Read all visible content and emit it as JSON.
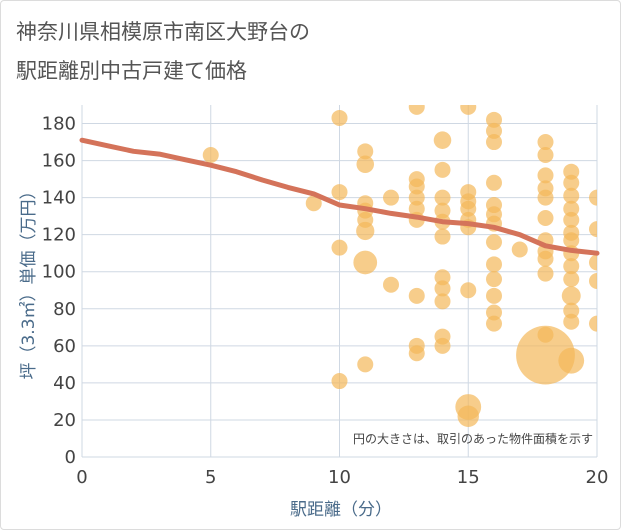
{
  "chart_data": {
    "type": "scatter",
    "title_lines": [
      "神奈川県相模原市南区大野台の",
      "駅距離別中古戸建て価格"
    ],
    "xlabel": "駅距離（分）",
    "ylabel": "坪（3.3㎡）単価（万円）",
    "note": "円の大きさは、取引のあった物件面積を示す",
    "xlim": [
      0,
      20
    ],
    "ylim": [
      0,
      190
    ],
    "xticks": [
      0,
      5,
      10,
      15,
      20
    ],
    "yticks": [
      0,
      20,
      40,
      60,
      80,
      100,
      120,
      140,
      160,
      180
    ],
    "grid": true,
    "colors": {
      "bubble": "#f3b85a",
      "trend": "#d4735a",
      "grid": "#cfd8e3"
    },
    "trend": {
      "x": [
        0,
        1,
        2,
        3,
        4,
        5,
        6,
        7,
        8,
        9,
        10,
        11,
        12,
        13,
        14,
        15,
        16,
        17,
        18,
        19,
        20
      ],
      "y": [
        171,
        168,
        165,
        163.5,
        160.5,
        157.5,
        154,
        149.5,
        145.5,
        142,
        136,
        134,
        131.5,
        129.5,
        127,
        126,
        124,
        120,
        114,
        111.5,
        110
      ]
    },
    "points": [
      {
        "x": 5,
        "y": 163,
        "s": 1
      },
      {
        "x": 9,
        "y": 137,
        "s": 1
      },
      {
        "x": 10,
        "y": 183,
        "s": 1
      },
      {
        "x": 10,
        "y": 143,
        "s": 1
      },
      {
        "x": 10,
        "y": 113,
        "s": 1
      },
      {
        "x": 10,
        "y": 41,
        "s": 1
      },
      {
        "x": 11,
        "y": 165,
        "s": 1
      },
      {
        "x": 11,
        "y": 158,
        "s": 1.2
      },
      {
        "x": 11,
        "y": 137,
        "s": 1
      },
      {
        "x": 11,
        "y": 133,
        "s": 1
      },
      {
        "x": 11,
        "y": 128,
        "s": 1
      },
      {
        "x": 11,
        "y": 122,
        "s": 1.3
      },
      {
        "x": 11,
        "y": 105,
        "s": 2.2
      },
      {
        "x": 11,
        "y": 50,
        "s": 1
      },
      {
        "x": 12,
        "y": 140,
        "s": 1
      },
      {
        "x": 12,
        "y": 93,
        "s": 1
      },
      {
        "x": 13,
        "y": 189,
        "s": 1
      },
      {
        "x": 13,
        "y": 150,
        "s": 1
      },
      {
        "x": 13,
        "y": 146,
        "s": 1
      },
      {
        "x": 13,
        "y": 140,
        "s": 1
      },
      {
        "x": 13,
        "y": 134,
        "s": 1
      },
      {
        "x": 13,
        "y": 128,
        "s": 1
      },
      {
        "x": 13,
        "y": 87,
        "s": 1
      },
      {
        "x": 13,
        "y": 60,
        "s": 1
      },
      {
        "x": 13,
        "y": 56,
        "s": 1
      },
      {
        "x": 14,
        "y": 171,
        "s": 1.2
      },
      {
        "x": 14,
        "y": 155,
        "s": 1
      },
      {
        "x": 14,
        "y": 140,
        "s": 1
      },
      {
        "x": 14,
        "y": 133,
        "s": 1
      },
      {
        "x": 14,
        "y": 127,
        "s": 1
      },
      {
        "x": 14,
        "y": 119,
        "s": 1
      },
      {
        "x": 14,
        "y": 97,
        "s": 1
      },
      {
        "x": 14,
        "y": 91,
        "s": 1
      },
      {
        "x": 14,
        "y": 84,
        "s": 1
      },
      {
        "x": 14,
        "y": 65,
        "s": 1
      },
      {
        "x": 14,
        "y": 60,
        "s": 1
      },
      {
        "x": 15,
        "y": 189,
        "s": 1
      },
      {
        "x": 15,
        "y": 143,
        "s": 1
      },
      {
        "x": 15,
        "y": 138,
        "s": 1
      },
      {
        "x": 15,
        "y": 134,
        "s": 1
      },
      {
        "x": 15,
        "y": 128,
        "s": 1
      },
      {
        "x": 15,
        "y": 124,
        "s": 1
      },
      {
        "x": 15,
        "y": 90,
        "s": 1
      },
      {
        "x": 15,
        "y": 27,
        "s": 2.6
      },
      {
        "x": 15,
        "y": 22,
        "s": 1.8
      },
      {
        "x": 16,
        "y": 182,
        "s": 1
      },
      {
        "x": 16,
        "y": 176,
        "s": 1
      },
      {
        "x": 16,
        "y": 170,
        "s": 1
      },
      {
        "x": 16,
        "y": 148,
        "s": 1
      },
      {
        "x": 16,
        "y": 136,
        "s": 1
      },
      {
        "x": 16,
        "y": 131,
        "s": 1
      },
      {
        "x": 16,
        "y": 126,
        "s": 1
      },
      {
        "x": 16,
        "y": 116,
        "s": 1
      },
      {
        "x": 16,
        "y": 104,
        "s": 1
      },
      {
        "x": 16,
        "y": 96,
        "s": 1
      },
      {
        "x": 16,
        "y": 87,
        "s": 1
      },
      {
        "x": 16,
        "y": 78,
        "s": 1
      },
      {
        "x": 16,
        "y": 72,
        "s": 1
      },
      {
        "x": 17,
        "y": 112,
        "s": 1
      },
      {
        "x": 18,
        "y": 170,
        "s": 1
      },
      {
        "x": 18,
        "y": 163,
        "s": 1
      },
      {
        "x": 18,
        "y": 152,
        "s": 1
      },
      {
        "x": 18,
        "y": 145,
        "s": 1
      },
      {
        "x": 18,
        "y": 140,
        "s": 1
      },
      {
        "x": 18,
        "y": 129,
        "s": 1
      },
      {
        "x": 18,
        "y": 117,
        "s": 1
      },
      {
        "x": 18,
        "y": 111,
        "s": 1
      },
      {
        "x": 18,
        "y": 107,
        "s": 1
      },
      {
        "x": 18,
        "y": 99,
        "s": 1
      },
      {
        "x": 18,
        "y": 66,
        "s": 1
      },
      {
        "x": 18,
        "y": 55,
        "s": 13.5
      },
      {
        "x": 19,
        "y": 154,
        "s": 1
      },
      {
        "x": 19,
        "y": 148,
        "s": 1
      },
      {
        "x": 19,
        "y": 141,
        "s": 1
      },
      {
        "x": 19,
        "y": 134,
        "s": 1
      },
      {
        "x": 19,
        "y": 128,
        "s": 1
      },
      {
        "x": 19,
        "y": 121,
        "s": 1
      },
      {
        "x": 19,
        "y": 117,
        "s": 1
      },
      {
        "x": 19,
        "y": 110,
        "s": 1
      },
      {
        "x": 19,
        "y": 103,
        "s": 1
      },
      {
        "x": 19,
        "y": 96,
        "s": 1
      },
      {
        "x": 19,
        "y": 87,
        "s": 1.4
      },
      {
        "x": 19,
        "y": 79,
        "s": 1
      },
      {
        "x": 19,
        "y": 73,
        "s": 1
      },
      {
        "x": 19,
        "y": 52,
        "s": 2.6
      },
      {
        "x": 20,
        "y": 140,
        "s": 1
      },
      {
        "x": 20,
        "y": 123,
        "s": 1
      },
      {
        "x": 20,
        "y": 105,
        "s": 1
      },
      {
        "x": 20,
        "y": 95,
        "s": 1
      },
      {
        "x": 20,
        "y": 72,
        "s": 1
      }
    ]
  }
}
